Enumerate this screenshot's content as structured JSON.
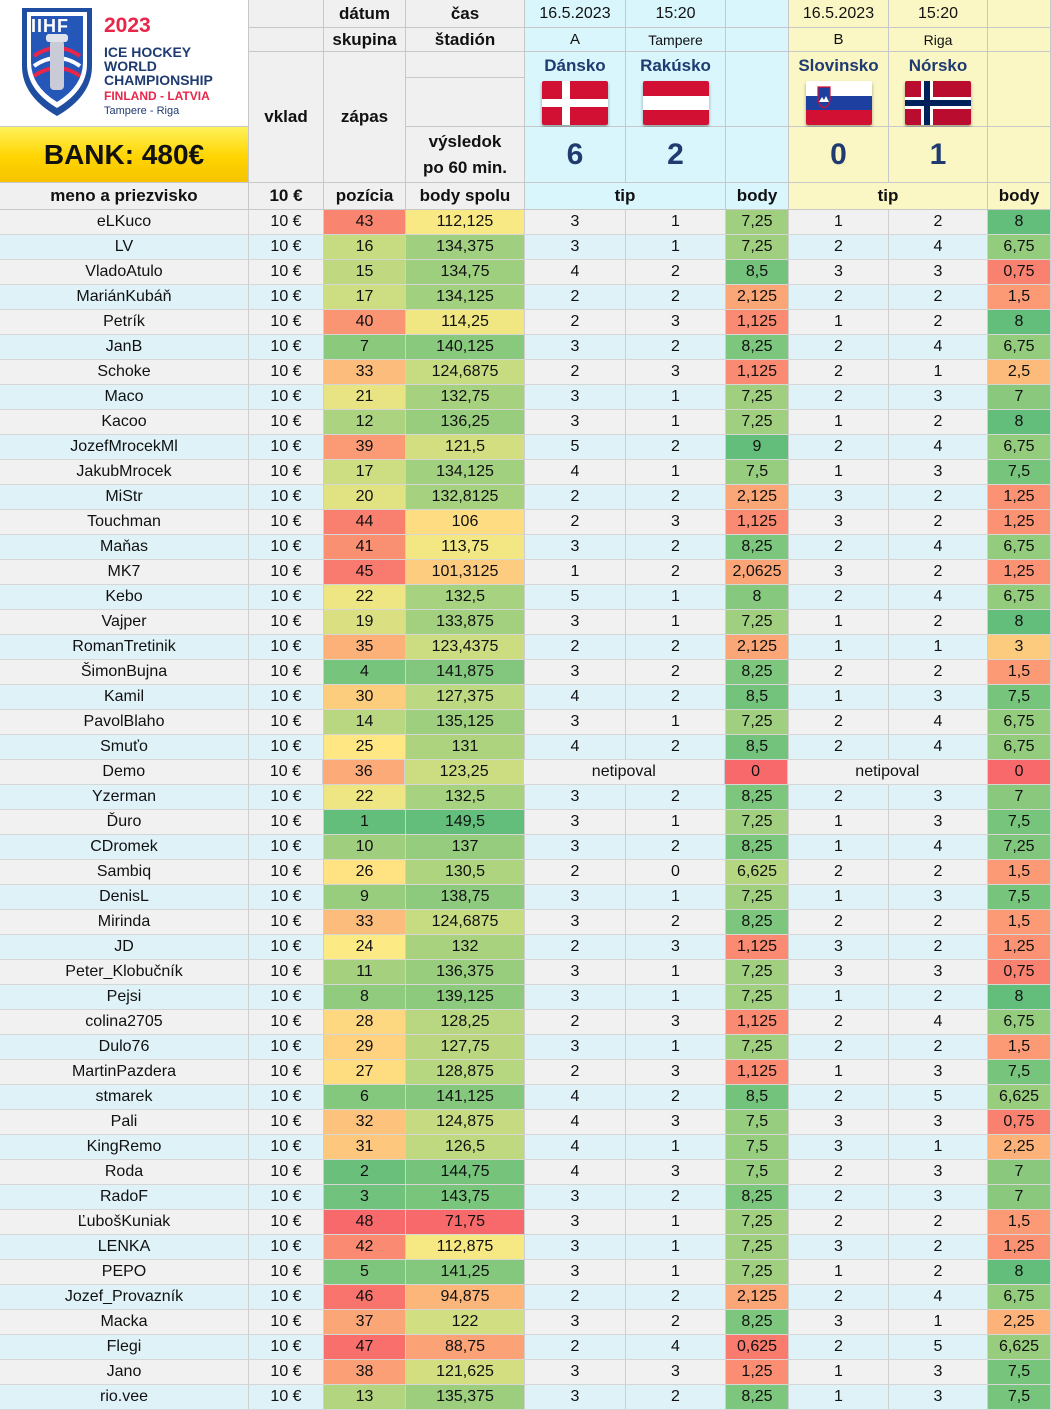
{
  "logo": {
    "org": "IIHF",
    "year": "2023",
    "line1": "ICE HOCKEY",
    "line2": "WORLD",
    "line3": "CHAMPIONSHIP",
    "line4": "FINLAND - LATVIA",
    "line5": "Tampere - Riga"
  },
  "bank": "BANK: 480€",
  "header": {
    "datum": "dátum",
    "cas": "čas",
    "skupina": "skupina",
    "stadion": "štadión",
    "vklad": "vklad",
    "zapas": "zápas",
    "vysledok1": "výsledok",
    "vysledok2": "po 60 min.",
    "col_name": "meno a priezvisko",
    "col_stake": "10 €",
    "col_pos": "pozícia",
    "col_total": "body spolu",
    "tip1": "tip",
    "body1": "body",
    "tip2": "tip",
    "body2": "body"
  },
  "matches": [
    {
      "date": "16.5.2023",
      "time": "15:20",
      "group": "A",
      "venue": "Tampere",
      "home": "Dánsko",
      "away": "Rakúsko",
      "home_score": "6",
      "away_score": "2"
    },
    {
      "date": "16.5.2023",
      "time": "15:20",
      "group": "B",
      "venue": "Riga",
      "home": "Slovinsko",
      "away": "Nórsko",
      "home_score": "0",
      "away_score": "1"
    }
  ],
  "rows": [
    [
      "eLKuco",
      "10 €",
      "43",
      "112,125",
      "3",
      "1",
      "7,25",
      "1",
      "2",
      "8"
    ],
    [
      "LV",
      "10 €",
      "16",
      "134,375",
      "3",
      "1",
      "7,25",
      "2",
      "4",
      "6,75"
    ],
    [
      "VladoAtulo",
      "10 €",
      "15",
      "134,75",
      "4",
      "2",
      "8,5",
      "3",
      "3",
      "0,75"
    ],
    [
      "MariánKubáň",
      "10 €",
      "17",
      "134,125",
      "2",
      "2",
      "2,125",
      "2",
      "2",
      "1,5"
    ],
    [
      "Petrík",
      "10 €",
      "40",
      "114,25",
      "2",
      "3",
      "1,125",
      "1",
      "2",
      "8"
    ],
    [
      "JanB",
      "10 €",
      "7",
      "140,125",
      "3",
      "2",
      "8,25",
      "2",
      "4",
      "6,75"
    ],
    [
      "Schoke",
      "10 €",
      "33",
      "124,6875",
      "2",
      "3",
      "1,125",
      "2",
      "1",
      "2,5"
    ],
    [
      "Maco",
      "10 €",
      "21",
      "132,75",
      "3",
      "1",
      "7,25",
      "2",
      "3",
      "7"
    ],
    [
      "Kacoo",
      "10 €",
      "12",
      "136,25",
      "3",
      "1",
      "7,25",
      "1",
      "2",
      "8"
    ],
    [
      "JozefMrocekMl",
      "10 €",
      "39",
      "121,5",
      "5",
      "2",
      "9",
      "2",
      "4",
      "6,75"
    ],
    [
      "JakubMrocek",
      "10 €",
      "17",
      "134,125",
      "4",
      "1",
      "7,5",
      "1",
      "3",
      "7,5"
    ],
    [
      "MiStr",
      "10 €",
      "20",
      "132,8125",
      "2",
      "2",
      "2,125",
      "3",
      "2",
      "1,25"
    ],
    [
      "Touchman",
      "10 €",
      "44",
      "106",
      "2",
      "3",
      "1,125",
      "3",
      "2",
      "1,25"
    ],
    [
      "Maňas",
      "10 €",
      "41",
      "113,75",
      "3",
      "2",
      "8,25",
      "2",
      "4",
      "6,75"
    ],
    [
      "MK7",
      "10 €",
      "45",
      "101,3125",
      "1",
      "2",
      "2,0625",
      "3",
      "2",
      "1,25"
    ],
    [
      "Kebo",
      "10 €",
      "22",
      "132,5",
      "5",
      "1",
      "8",
      "2",
      "4",
      "6,75"
    ],
    [
      "Vajper",
      "10 €",
      "19",
      "133,875",
      "3",
      "1",
      "7,25",
      "1",
      "2",
      "8"
    ],
    [
      "RomanTretinik",
      "10 €",
      "35",
      "123,4375",
      "2",
      "2",
      "2,125",
      "1",
      "1",
      "3"
    ],
    [
      "ŠimonBujna",
      "10 €",
      "4",
      "141,875",
      "3",
      "2",
      "8,25",
      "2",
      "2",
      "1,5"
    ],
    [
      "Kamil",
      "10 €",
      "30",
      "127,375",
      "4",
      "2",
      "8,5",
      "1",
      "3",
      "7,5"
    ],
    [
      "PavolBlaho",
      "10 €",
      "14",
      "135,125",
      "3",
      "1",
      "7,25",
      "2",
      "4",
      "6,75"
    ],
    [
      "Smuťo",
      "10 €",
      "25",
      "131",
      "4",
      "2",
      "8,5",
      "2",
      "4",
      "6,75"
    ],
    [
      "Demo",
      "10 €",
      "36",
      "123,25",
      "netipoval",
      "",
      "0",
      "netipoval",
      "",
      "0"
    ],
    [
      "Yzerman",
      "10 €",
      "22",
      "132,5",
      "3",
      "2",
      "8,25",
      "2",
      "3",
      "7"
    ],
    [
      "Ďuro",
      "10 €",
      "1",
      "149,5",
      "3",
      "1",
      "7,25",
      "1",
      "3",
      "7,5"
    ],
    [
      "CDromek",
      "10 €",
      "10",
      "137",
      "3",
      "2",
      "8,25",
      "1",
      "4",
      "7,25"
    ],
    [
      "Sambiq",
      "10 €",
      "26",
      "130,5",
      "2",
      "0",
      "6,625",
      "2",
      "2",
      "1,5"
    ],
    [
      "DenisL",
      "10 €",
      "9",
      "138,75",
      "3",
      "1",
      "7,25",
      "1",
      "3",
      "7,5"
    ],
    [
      "Mirinda",
      "10 €",
      "33",
      "124,6875",
      "3",
      "2",
      "8,25",
      "2",
      "2",
      "1,5"
    ],
    [
      "JD",
      "10 €",
      "24",
      "132",
      "2",
      "3",
      "1,125",
      "3",
      "2",
      "1,25"
    ],
    [
      "Peter_Klobučník",
      "10 €",
      "11",
      "136,375",
      "3",
      "1",
      "7,25",
      "3",
      "3",
      "0,75"
    ],
    [
      "Pejsi",
      "10 €",
      "8",
      "139,125",
      "3",
      "1",
      "7,25",
      "1",
      "2",
      "8"
    ],
    [
      "colina2705",
      "10 €",
      "28",
      "128,25",
      "2",
      "3",
      "1,125",
      "2",
      "4",
      "6,75"
    ],
    [
      "Dulo76",
      "10 €",
      "29",
      "127,75",
      "3",
      "1",
      "7,25",
      "2",
      "2",
      "1,5"
    ],
    [
      "MartinPazdera",
      "10 €",
      "27",
      "128,875",
      "2",
      "3",
      "1,125",
      "1",
      "3",
      "7,5"
    ],
    [
      "stmarek",
      "10 €",
      "6",
      "141,125",
      "4",
      "2",
      "8,5",
      "2",
      "5",
      "6,625"
    ],
    [
      "Pali",
      "10 €",
      "32",
      "124,875",
      "4",
      "3",
      "7,5",
      "3",
      "3",
      "0,75"
    ],
    [
      "KingRemo",
      "10 €",
      "31",
      "126,5",
      "4",
      "1",
      "7,5",
      "3",
      "1",
      "2,25"
    ],
    [
      "Roda",
      "10 €",
      "2",
      "144,75",
      "4",
      "3",
      "7,5",
      "2",
      "3",
      "7"
    ],
    [
      "RadoF",
      "10 €",
      "3",
      "143,75",
      "3",
      "2",
      "8,25",
      "2",
      "3",
      "7"
    ],
    [
      "ĽubošKuniak",
      "10 €",
      "48",
      "71,75",
      "3",
      "1",
      "7,25",
      "2",
      "2",
      "1,5"
    ],
    [
      "LENKA",
      "10 €",
      "42",
      "112,875",
      "3",
      "1",
      "7,25",
      "3",
      "2",
      "1,25"
    ],
    [
      "PEPO",
      "10 €",
      "5",
      "141,25",
      "3",
      "1",
      "7,25",
      "1",
      "2",
      "8"
    ],
    [
      "Jozef_Provazník",
      "10 €",
      "46",
      "94,875",
      "2",
      "2",
      "2,125",
      "2",
      "4",
      "6,75"
    ],
    [
      "Macka",
      "10 €",
      "37",
      "122",
      "3",
      "2",
      "8,25",
      "3",
      "1",
      "2,25"
    ],
    [
      "Flegi",
      "10 €",
      "47",
      "88,75",
      "2",
      "4",
      "0,625",
      "2",
      "5",
      "6,625"
    ],
    [
      "Jano",
      "10 €",
      "38",
      "121,625",
      "3",
      "3",
      "1,25",
      "1",
      "3",
      "7,5"
    ],
    [
      "rio.vee",
      "10 €",
      "13",
      "135,375",
      "3",
      "2",
      "8,25",
      "1",
      "3",
      "7,5"
    ]
  ]
}
